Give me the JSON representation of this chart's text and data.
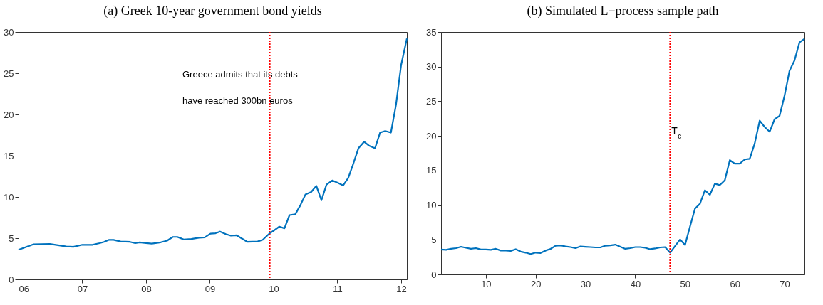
{
  "chart_data": [
    {
      "type": "line",
      "title": "(a) Greek 10-year government bond yields",
      "x": [
        2006.0,
        2006.23,
        2006.49,
        2006.75,
        2006.86,
        2007.0,
        2007.16,
        2007.27,
        2007.34,
        2007.42,
        2007.49,
        2007.6,
        2007.75,
        2007.83,
        2007.9,
        2008.0,
        2008.09,
        2008.23,
        2008.33,
        2008.42,
        2008.49,
        2008.59,
        2008.71,
        2008.83,
        2008.92,
        2009.01,
        2009.09,
        2009.16,
        2009.25,
        2009.33,
        2009.42,
        2009.59,
        2009.75,
        2009.83,
        2009.94,
        2010.01,
        2010.09,
        2010.17,
        2010.25,
        2010.34,
        2010.42,
        2010.5,
        2010.59,
        2010.67,
        2010.75,
        2010.83,
        2010.92,
        2011.01,
        2011.09,
        2011.17,
        2011.24,
        2011.33,
        2011.42,
        2011.5,
        2011.59,
        2011.67,
        2011.75,
        2011.84,
        2011.92,
        2012.0,
        2012.09
      ],
      "series": [
        {
          "color": "#0072bd",
          "values": [
            3.6,
            4.25,
            4.3,
            4.0,
            3.95,
            4.2,
            4.2,
            4.4,
            4.55,
            4.8,
            4.8,
            4.6,
            4.55,
            4.4,
            4.5,
            4.4,
            4.35,
            4.5,
            4.7,
            5.15,
            5.15,
            4.85,
            4.9,
            5.05,
            5.1,
            5.55,
            5.6,
            5.8,
            5.5,
            5.3,
            5.35,
            4.55,
            4.6,
            4.8,
            5.6,
            5.95,
            6.4,
            6.2,
            7.8,
            7.9,
            9.0,
            10.3,
            10.6,
            11.35,
            9.6,
            11.5,
            12.0,
            11.7,
            11.4,
            12.3,
            13.8,
            15.9,
            16.7,
            16.2,
            15.9,
            17.8,
            18.0,
            17.8,
            21.2,
            26.0,
            29.2
          ]
        }
      ],
      "xlim": [
        2006,
        2012.09
      ],
      "xticks": [
        {
          "value": 2006,
          "label": "06"
        },
        {
          "value": 2007,
          "label": "07"
        },
        {
          "value": 2008,
          "label": "08"
        },
        {
          "value": 2009,
          "label": "09"
        },
        {
          "value": 2010,
          "label": "10"
        },
        {
          "value": 2011,
          "label": "11"
        },
        {
          "value": 2012,
          "label": "12"
        }
      ],
      "ylim": [
        0,
        30
      ],
      "yticks": [
        0,
        5,
        10,
        15,
        20,
        25,
        30
      ],
      "ref_lines": [
        {
          "axis": "x",
          "value": 2009.94,
          "color": "#ff0000",
          "line_style": "dotted"
        }
      ],
      "annotations": [
        "Greece admits that its debts",
        "have reached 300bn euros"
      ],
      "grid": false,
      "line_style": "solid"
    },
    {
      "type": "line",
      "title": "(b) Simulated L−process sample path",
      "x": [
        1,
        2,
        3,
        4,
        5,
        6,
        7,
        8,
        9,
        10,
        11,
        12,
        13,
        14,
        15,
        16,
        17,
        18,
        19,
        20,
        21,
        22,
        23,
        24,
        25,
        26,
        27,
        28,
        29,
        30,
        31,
        32,
        33,
        34,
        35,
        36,
        37,
        38,
        39,
        40,
        41,
        42,
        43,
        44,
        45,
        46,
        47,
        48,
        49,
        50,
        51,
        52,
        53,
        54,
        55,
        56,
        57,
        58,
        59,
        60,
        61,
        62,
        63,
        64,
        65,
        66,
        67,
        68,
        69,
        70,
        71,
        72,
        73,
        74
      ],
      "series": [
        {
          "color": "#0072bd",
          "values": [
            3.6,
            3.55,
            3.7,
            3.8,
            4.0,
            3.85,
            3.7,
            3.8,
            3.6,
            3.6,
            3.55,
            3.7,
            3.45,
            3.45,
            3.4,
            3.65,
            3.3,
            3.15,
            2.95,
            3.15,
            3.1,
            3.45,
            3.7,
            4.15,
            4.2,
            4.05,
            3.95,
            3.8,
            4.05,
            4.0,
            3.95,
            3.9,
            3.9,
            4.15,
            4.2,
            4.3,
            4.0,
            3.7,
            3.8,
            3.95,
            3.95,
            3.85,
            3.65,
            3.75,
            3.9,
            3.95,
            3.15,
            4.1,
            5.05,
            4.25,
            6.9,
            9.5,
            10.2,
            12.15,
            11.5,
            13.1,
            12.9,
            13.6,
            16.5,
            16.0,
            16.0,
            16.6,
            16.7,
            18.9,
            22.2,
            21.3,
            20.6,
            22.4,
            22.9,
            25.8,
            29.4,
            30.9,
            33.5,
            34.0
          ]
        }
      ],
      "xlim": [
        1,
        74
      ],
      "xticks": [
        10,
        20,
        30,
        40,
        50,
        60,
        70
      ],
      "ylim": [
        0,
        35
      ],
      "yticks": [
        0,
        5,
        10,
        15,
        20,
        25,
        30,
        35
      ],
      "ref_lines": [
        {
          "axis": "x",
          "value": 47,
          "label": "T$_{c}$",
          "color": "#ff0000",
          "line_style": "dotted"
        }
      ],
      "grid": false,
      "line_style": "solid"
    }
  ]
}
